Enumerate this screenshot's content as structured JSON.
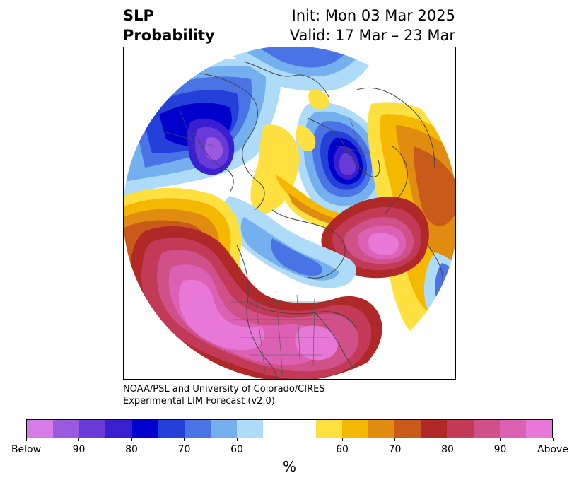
{
  "title": {
    "variable": "SLP",
    "product": "Probability",
    "init": "Init: Mon 03 Mar 2025",
    "valid": "Valid: 17 Mar – 23 Mar"
  },
  "credit": {
    "line1": "NOAA/PSL and University of Colorado/CIRES",
    "line2": "Experimental LIM Forecast (v2.0)"
  },
  "colorbar": {
    "unit": "%",
    "ticks": [
      "Below",
      "90",
      "80",
      "70",
      "60",
      "60",
      "70",
      "80",
      "90",
      "Above"
    ],
    "below_colors": [
      "#d77be6",
      "#9b59e0",
      "#6a3ad8",
      "#3a1fd0",
      "#0000cc",
      "#2340d9",
      "#4a74e6",
      "#74afee",
      "#aedcf8"
    ],
    "neutral_color": "#ffffff",
    "above_colors": [
      "#fee040",
      "#f5b800",
      "#e08c10",
      "#c85a1a",
      "#b02828",
      "#c23a58",
      "#d0508a",
      "#dc60b4",
      "#e878d8"
    ]
  },
  "map": {
    "projection": "north-polar-stereographic",
    "features": [
      "coastlines",
      "country borders",
      "US state borders"
    ]
  }
}
